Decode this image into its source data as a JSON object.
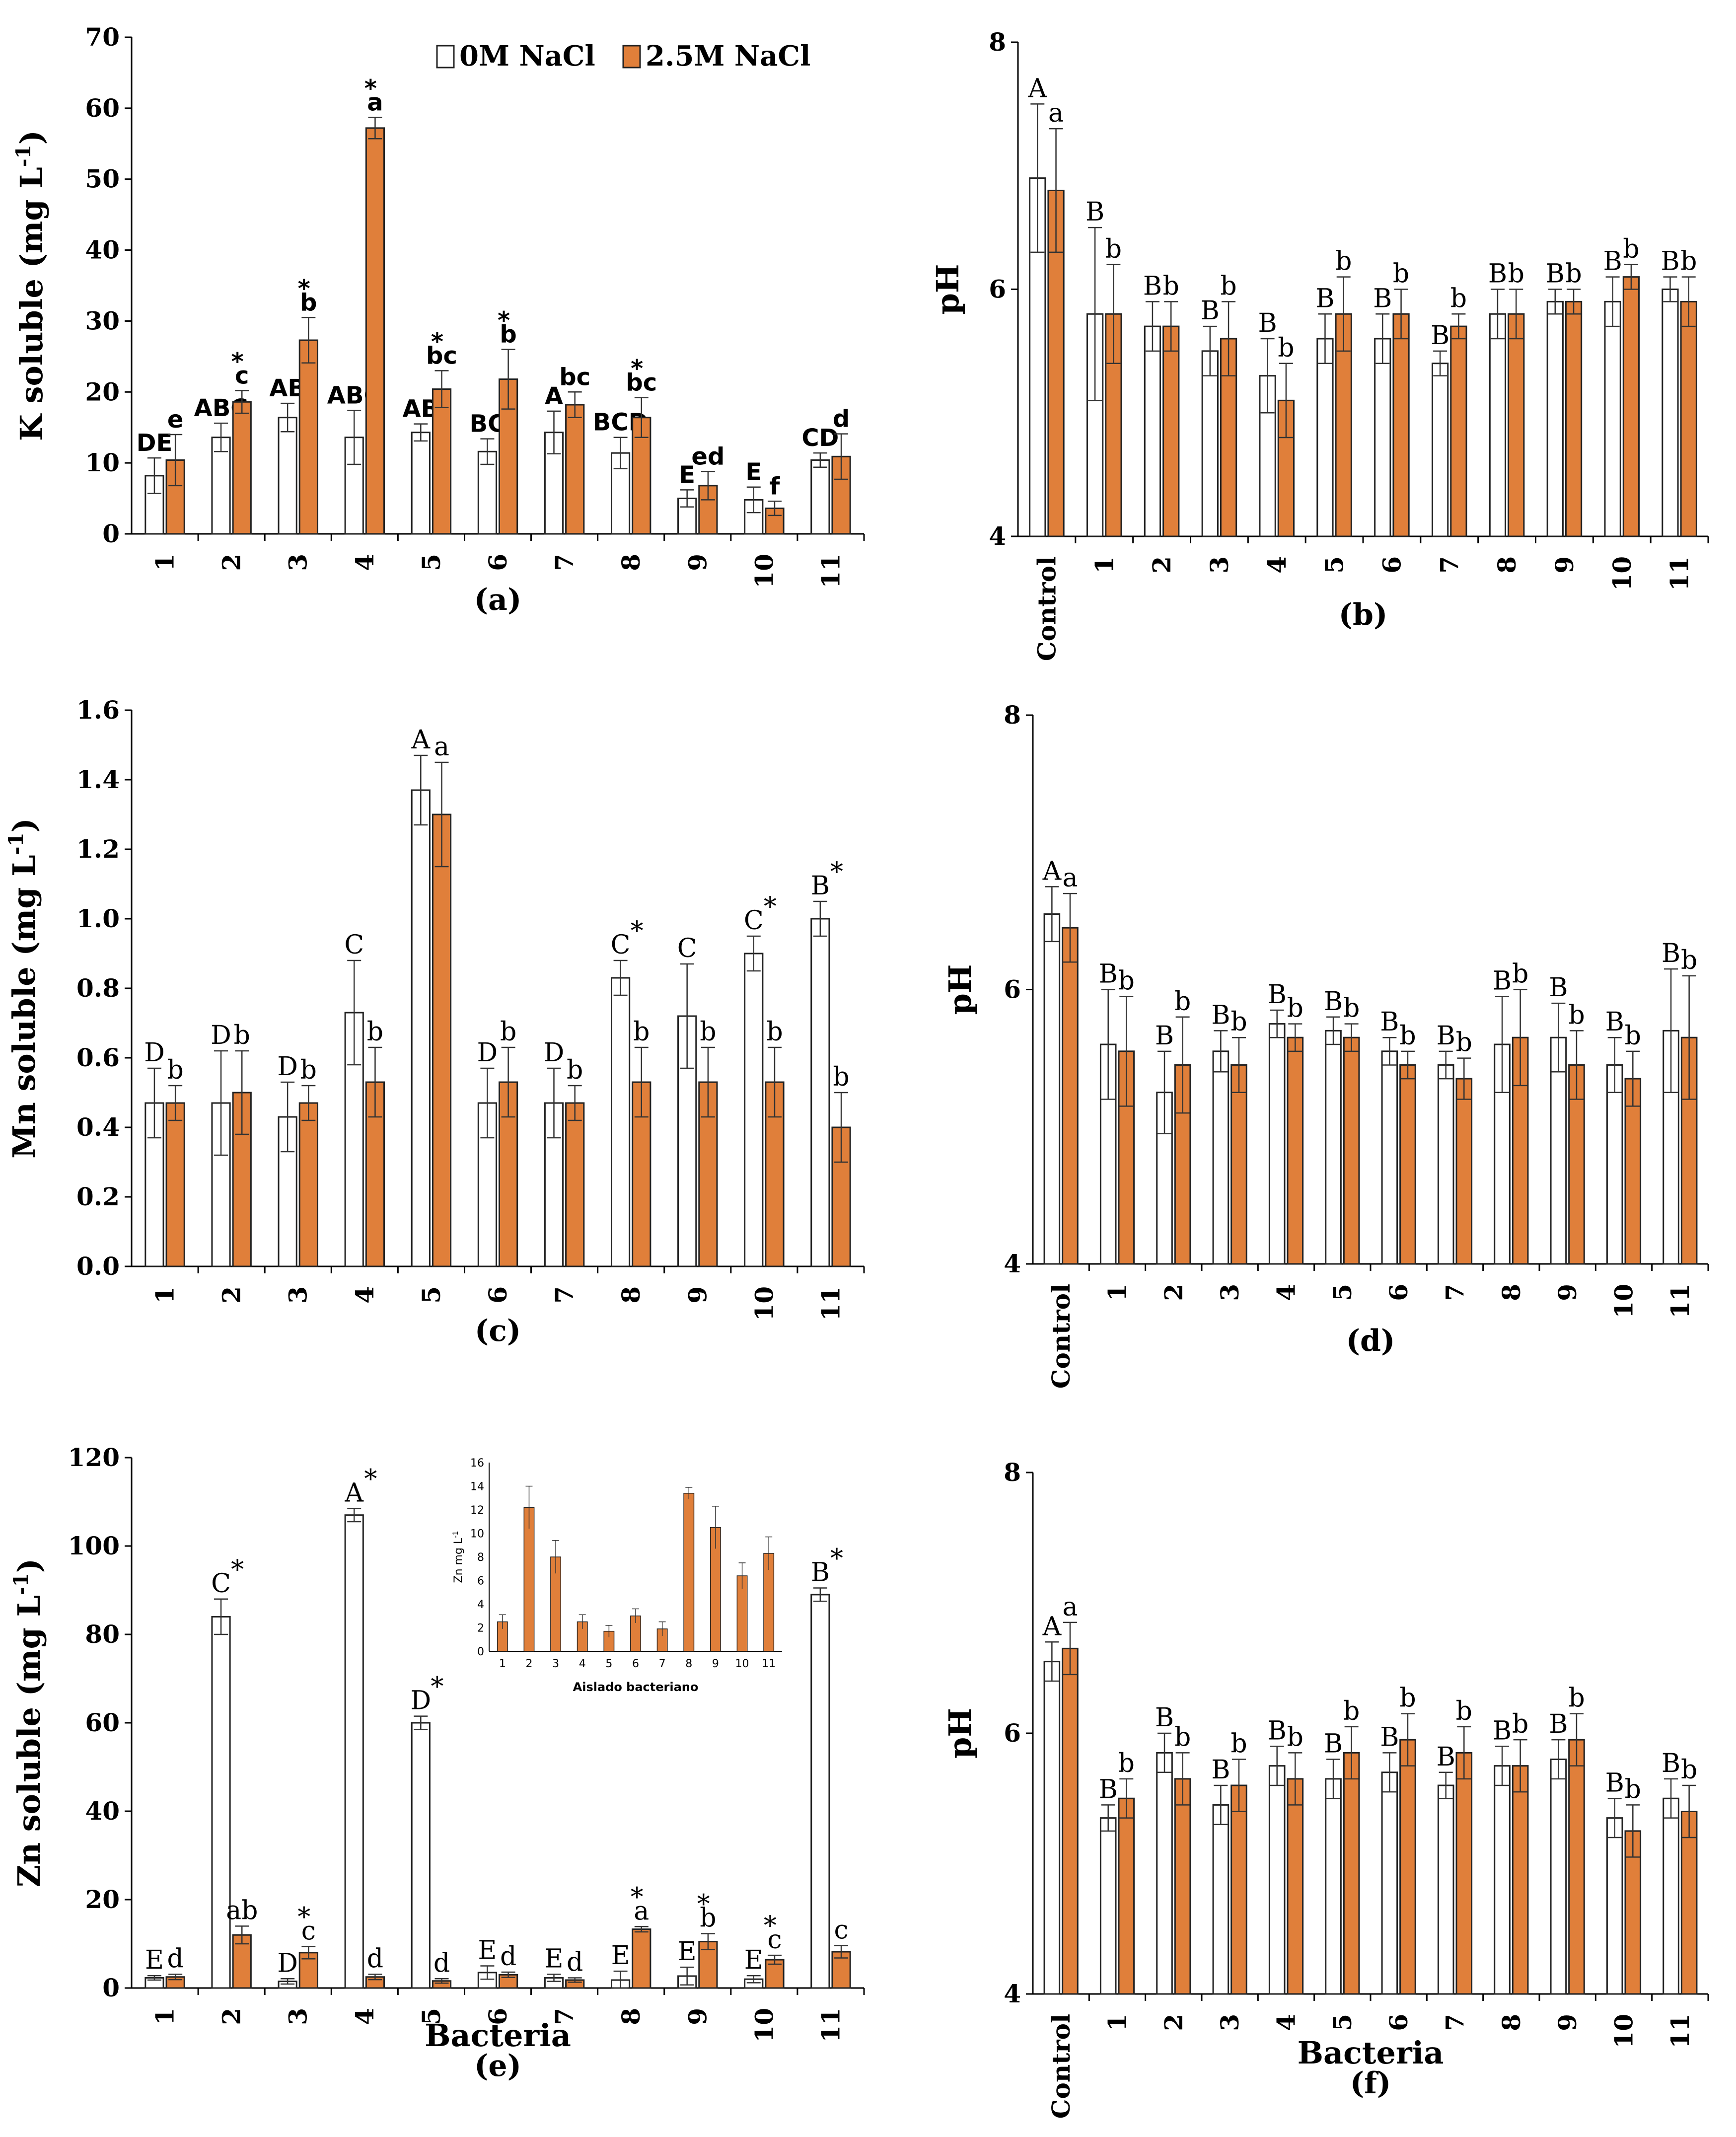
{
  "colors": {
    "control_fill": "#ffffff",
    "salt_fill": "#e07f3a",
    "bar_stroke": "#222222"
  },
  "legend": {
    "series_0": "0M NaCl",
    "series_1": "2.5M NaCl"
  },
  "chart_data": [
    {
      "panel": "(a)",
      "type": "bar",
      "ylabel": "K soluble (mg L-1)",
      "xlabel": "",
      "ylim": [
        0,
        70
      ],
      "yticks": [
        0,
        10,
        20,
        30,
        40,
        50,
        60,
        70
      ],
      "categories": [
        "1",
        "2",
        "3",
        "4",
        "5",
        "6",
        "7",
        "8",
        "9",
        "10",
        "11"
      ],
      "series": [
        {
          "name": "0M NaCl",
          "values": [
            8.2,
            13.6,
            16.4,
            13.6,
            14.3,
            11.6,
            14.3,
            11.4,
            5.0,
            4.8,
            10.4
          ],
          "errors": [
            2.5,
            2.0,
            2.0,
            3.8,
            1.2,
            1.8,
            3.0,
            2.2,
            1.2,
            1.8,
            1.0
          ]
        },
        {
          "name": "2.5M NaCl",
          "values": [
            10.4,
            18.6,
            27.3,
            57.2,
            20.4,
            21.8,
            18.2,
            16.4,
            6.8,
            3.6,
            10.9
          ],
          "errors": [
            3.6,
            1.6,
            3.2,
            1.5,
            2.6,
            4.2,
            1.8,
            2.8,
            2.0,
            1.0,
            3.2
          ]
        }
      ],
      "letters_0": [
        "DE",
        "ABC",
        "AB",
        "ABC",
        "AB",
        "BC",
        "A",
        "BCD",
        "E",
        "E",
        "CD"
      ],
      "letters_1": [
        "e",
        "c",
        "b",
        "a",
        "bc",
        "b",
        "bc",
        "bc",
        "ed",
        "f",
        "d"
      ],
      "stars": [
        false,
        true,
        true,
        true,
        true,
        true,
        false,
        true,
        false,
        false,
        false
      ]
    },
    {
      "panel": "(b)",
      "type": "bar",
      "ylabel": "pH",
      "xlabel": "",
      "ylim": [
        4,
        8
      ],
      "yticks": [
        4,
        6,
        8
      ],
      "categories": [
        "Control",
        "1",
        "2",
        "3",
        "4",
        "5",
        "6",
        "7",
        "8",
        "9",
        "10",
        "11"
      ],
      "series": [
        {
          "name": "0M NaCl",
          "values": [
            6.9,
            5.8,
            5.7,
            5.5,
            5.3,
            5.6,
            5.6,
            5.4,
            5.8,
            5.9,
            5.9,
            6.0
          ],
          "errors": [
            0.6,
            0.7,
            0.2,
            0.2,
            0.3,
            0.2,
            0.2,
            0.1,
            0.2,
            0.1,
            0.2,
            0.1
          ]
        },
        {
          "name": "2.5M NaCl",
          "values": [
            6.8,
            5.8,
            5.7,
            5.6,
            5.1,
            5.8,
            5.8,
            5.7,
            5.8,
            5.9,
            6.1,
            5.9
          ],
          "errors": [
            0.5,
            0.4,
            0.2,
            0.3,
            0.3,
            0.3,
            0.2,
            0.1,
            0.2,
            0.1,
            0.1,
            0.2
          ]
        }
      ],
      "letters_0": [
        "A",
        "B",
        "B",
        "B",
        "B",
        "B",
        "B",
        "B",
        "B",
        "B",
        "B",
        "B"
      ],
      "letters_1": [
        "a",
        "b",
        "b",
        "b",
        "b",
        "b",
        "b",
        "b",
        "b",
        "b",
        "b",
        "b"
      ],
      "stars": [
        false,
        false,
        false,
        false,
        false,
        false,
        false,
        false,
        false,
        false,
        false,
        false
      ]
    },
    {
      "panel": "(c)",
      "type": "bar",
      "ylabel": "Mn soluble (mg L-1)",
      "xlabel": "",
      "ylim": [
        0,
        1.6
      ],
      "yticks": [
        0.0,
        0.2,
        0.4,
        0.6,
        0.8,
        1.0,
        1.2,
        1.4,
        1.6
      ],
      "categories": [
        "1",
        "2",
        "3",
        "4",
        "5",
        "6",
        "7",
        "8",
        "9",
        "10",
        "11"
      ],
      "series": [
        {
          "name": "0M NaCl",
          "values": [
            0.47,
            0.47,
            0.43,
            0.73,
            1.37,
            0.47,
            0.47,
            0.83,
            0.72,
            0.9,
            1.0
          ],
          "errors": [
            0.1,
            0.15,
            0.1,
            0.15,
            0.1,
            0.1,
            0.1,
            0.05,
            0.15,
            0.05,
            0.05
          ]
        },
        {
          "name": "2.5M NaCl",
          "values": [
            0.47,
            0.5,
            0.47,
            0.53,
            1.3,
            0.53,
            0.47,
            0.53,
            0.53,
            0.53,
            0.4
          ],
          "errors": [
            0.05,
            0.12,
            0.05,
            0.1,
            0.15,
            0.1,
            0.05,
            0.1,
            0.1,
            0.1,
            0.1
          ]
        }
      ],
      "letters_0": [
        "D",
        "D",
        "D",
        "C",
        "A",
        "D",
        "D",
        "C",
        "C",
        "C",
        "B"
      ],
      "letters_1": [
        "b",
        "b",
        "b",
        "b",
        "a",
        "b",
        "b",
        "b",
        "b",
        "b",
        "b"
      ],
      "stars": [
        false,
        false,
        false,
        false,
        false,
        false,
        false,
        true,
        false,
        true,
        true
      ]
    },
    {
      "panel": "(d)",
      "type": "bar",
      "ylabel": "pH",
      "xlabel": "",
      "ylim": [
        4,
        8
      ],
      "yticks": [
        4,
        6,
        8
      ],
      "categories": [
        "Control",
        "1",
        "2",
        "3",
        "4",
        "5",
        "6",
        "7",
        "8",
        "9",
        "10",
        "11"
      ],
      "series": [
        {
          "name": "0M NaCl",
          "values": [
            6.55,
            5.6,
            5.25,
            5.55,
            5.75,
            5.7,
            5.55,
            5.45,
            5.6,
            5.65,
            5.45,
            5.7
          ],
          "errors": [
            0.2,
            0.4,
            0.3,
            0.15,
            0.1,
            0.1,
            0.1,
            0.1,
            0.35,
            0.25,
            0.2,
            0.45
          ]
        },
        {
          "name": "2.5M NaCl",
          "values": [
            6.45,
            5.55,
            5.45,
            5.45,
            5.65,
            5.65,
            5.45,
            5.35,
            5.65,
            5.45,
            5.35,
            5.65
          ],
          "errors": [
            0.25,
            0.4,
            0.35,
            0.2,
            0.1,
            0.1,
            0.1,
            0.15,
            0.35,
            0.25,
            0.2,
            0.45
          ]
        }
      ],
      "letters_0": [
        "A",
        "B",
        "B",
        "B",
        "B",
        "B",
        "B",
        "B",
        "B",
        "B",
        "B",
        "B"
      ],
      "letters_1": [
        "a",
        "b",
        "b",
        "b",
        "b",
        "b",
        "b",
        "b",
        "b",
        "b",
        "b",
        "b"
      ],
      "stars": [
        false,
        false,
        false,
        false,
        false,
        false,
        false,
        false,
        false,
        false,
        false,
        false
      ]
    },
    {
      "panel": "(e)",
      "type": "bar",
      "ylabel": "Zn soluble (mg L-1)",
      "xlabel": "Bacteria",
      "ylim": [
        0,
        120
      ],
      "yticks": [
        0,
        20,
        40,
        60,
        80,
        100,
        120
      ],
      "categories": [
        "1",
        "2",
        "3",
        "4",
        "5",
        "6",
        "7",
        "8",
        "9",
        "10",
        "11"
      ],
      "series": [
        {
          "name": "0M NaCl",
          "values": [
            2.3,
            84,
            1.5,
            107,
            60,
            3.5,
            2.3,
            1.8,
            2.7,
            2.0,
            89
          ],
          "errors": [
            0.5,
            4,
            0.6,
            1.5,
            1.5,
            1.5,
            0.8,
            2.0,
            2.0,
            0.8,
            1.5
          ]
        },
        {
          "name": "2.5M NaCl",
          "values": [
            2.5,
            12,
            8,
            2.5,
            1.6,
            3,
            1.8,
            13.3,
            10.5,
            6.4,
            8.2
          ],
          "errors": [
            0.6,
            2,
            1.4,
            0.6,
            0.5,
            0.6,
            0.5,
            0.6,
            1.8,
            1.0,
            1.4
          ]
        }
      ],
      "letters_0": [
        "E",
        "C",
        "D",
        "A",
        "D",
        "E",
        "E",
        "E",
        "E",
        "E",
        "B"
      ],
      "letters_1": [
        "d",
        "ab",
        "c",
        "d",
        "d",
        "d",
        "d",
        "a",
        "b",
        "c",
        "c"
      ],
      "stars": [
        false,
        true,
        true,
        true,
        true,
        false,
        false,
        true,
        true,
        true,
        true
      ],
      "inset": {
        "ylabel": "Zn mg L-1",
        "xlabel": "Aislado bacteriano",
        "ylim": [
          0,
          16
        ],
        "yticks": [
          0,
          2,
          4,
          6,
          8,
          10,
          12,
          14,
          16
        ],
        "categories": [
          "1",
          "2",
          "3",
          "4",
          "5",
          "6",
          "7",
          "8",
          "9",
          "10",
          "11"
        ],
        "values": [
          2.5,
          12.2,
          8.0,
          2.5,
          1.7,
          3.0,
          1.9,
          13.4,
          10.5,
          6.4,
          8.3
        ],
        "errors": [
          0.6,
          1.8,
          1.4,
          0.6,
          0.5,
          0.6,
          0.6,
          0.5,
          1.8,
          1.1,
          1.4
        ]
      }
    },
    {
      "panel": "(f)",
      "type": "bar",
      "ylabel": "pH",
      "xlabel": "Bacteria",
      "ylim": [
        4,
        8
      ],
      "yticks": [
        4,
        6,
        8
      ],
      "categories": [
        "Control",
        "1",
        "2",
        "3",
        "4",
        "5",
        "6",
        "7",
        "8",
        "9",
        "10",
        "11"
      ],
      "series": [
        {
          "name": "0M NaCl",
          "values": [
            6.55,
            5.35,
            5.85,
            5.45,
            5.75,
            5.65,
            5.7,
            5.6,
            5.75,
            5.8,
            5.35,
            5.5
          ],
          "errors": [
            0.15,
            0.1,
            0.15,
            0.15,
            0.15,
            0.15,
            0.15,
            0.1,
            0.15,
            0.15,
            0.15,
            0.15
          ]
        },
        {
          "name": "2.5M NaCl",
          "values": [
            6.65,
            5.5,
            5.65,
            5.6,
            5.65,
            5.85,
            5.95,
            5.85,
            5.75,
            5.95,
            5.25,
            5.4
          ],
          "errors": [
            0.2,
            0.15,
            0.2,
            0.2,
            0.2,
            0.2,
            0.2,
            0.2,
            0.2,
            0.2,
            0.2,
            0.2
          ]
        }
      ],
      "letters_0": [
        "A",
        "B",
        "B",
        "B",
        "B",
        "B",
        "B",
        "B",
        "B",
        "B",
        "B",
        "B"
      ],
      "letters_1": [
        "a",
        "b",
        "b",
        "b",
        "b",
        "b",
        "b",
        "b",
        "b",
        "b",
        "b",
        "b"
      ],
      "stars": [
        false,
        false,
        false,
        false,
        false,
        false,
        false,
        false,
        false,
        false,
        false,
        false
      ]
    }
  ]
}
